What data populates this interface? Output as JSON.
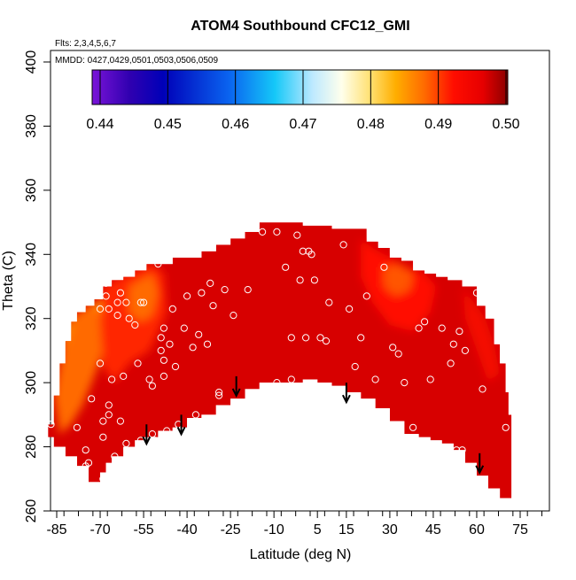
{
  "chart_data": {
    "type": "heatmap",
    "title": "ATOM4 Southbound CFC12_GMI",
    "subtitle_flights": "Flts: 2,3,4,5,6,7",
    "subtitle_dates": "MMDD: 0427,0429,0501,0503,0506,0509",
    "xlabel": "Latitude (deg N)",
    "ylabel": "Theta (C)",
    "xlim": [
      -87,
      87
    ],
    "ylim": [
      260,
      405
    ],
    "x_ticks": [
      -85,
      -70,
      -55,
      -40,
      -25,
      -10,
      5,
      15,
      30,
      45,
      60,
      75
    ],
    "y_ticks": [
      260,
      280,
      300,
      320,
      340,
      360,
      380,
      400
    ],
    "colorbar": {
      "min": 0.44,
      "max": 0.5,
      "ticks": [
        0.44,
        0.45,
        0.46,
        0.47,
        0.48,
        0.49,
        0.5
      ],
      "tick_labels": [
        "0.44",
        "0.45",
        "0.46",
        "0.47",
        "0.48",
        "0.49",
        "0.50"
      ]
    },
    "field_upper_boundary": [
      [
        -88,
        287
      ],
      [
        -86,
        296
      ],
      [
        -84,
        306
      ],
      [
        -82,
        313
      ],
      [
        -80,
        319
      ],
      [
        -78,
        322
      ],
      [
        -75,
        324
      ],
      [
        -72,
        326
      ],
      [
        -69,
        330
      ],
      [
        -66,
        332
      ],
      [
        -62,
        333
      ],
      [
        -58,
        335
      ],
      [
        -54,
        337
      ],
      [
        -50,
        337
      ],
      [
        -45,
        339
      ],
      [
        -40,
        339
      ],
      [
        -35,
        341
      ],
      [
        -30,
        343
      ],
      [
        -25,
        345
      ],
      [
        -20,
        347
      ],
      [
        -15,
        350
      ],
      [
        -10,
        350
      ],
      [
        -5,
        350
      ],
      [
        0,
        349
      ],
      [
        5,
        349
      ],
      [
        10,
        348
      ],
      [
        15,
        348
      ],
      [
        20,
        348
      ],
      [
        22,
        344
      ],
      [
        26,
        342
      ],
      [
        30,
        339
      ],
      [
        34,
        338
      ],
      [
        38,
        335
      ],
      [
        42,
        334
      ],
      [
        46,
        333
      ],
      [
        50,
        332
      ],
      [
        55,
        330
      ],
      [
        60,
        324
      ],
      [
        63,
        320
      ],
      [
        66,
        312
      ],
      [
        68,
        306
      ],
      [
        70,
        297
      ],
      [
        71,
        290
      ],
      [
        72,
        284
      ]
    ],
    "field_lower_boundary": [
      [
        72,
        264
      ],
      [
        68,
        267
      ],
      [
        64,
        271
      ],
      [
        60,
        275
      ],
      [
        56,
        279
      ],
      [
        52,
        281
      ],
      [
        48,
        282
      ],
      [
        44,
        283
      ],
      [
        40,
        284
      ],
      [
        35,
        288
      ],
      [
        30,
        292
      ],
      [
        25,
        295
      ],
      [
        20,
        297
      ],
      [
        15,
        299
      ],
      [
        10,
        300
      ],
      [
        5,
        301
      ],
      [
        0,
        300
      ],
      [
        -5,
        300
      ],
      [
        -10,
        300
      ],
      [
        -15,
        298
      ],
      [
        -20,
        295
      ],
      [
        -25,
        293
      ],
      [
        -30,
        290
      ],
      [
        -35,
        289
      ],
      [
        -40,
        286
      ],
      [
        -45,
        285
      ],
      [
        -50,
        283
      ],
      [
        -55,
        282
      ],
      [
        -58,
        280
      ],
      [
        -62,
        277
      ],
      [
        -66,
        275
      ],
      [
        -68,
        272
      ],
      [
        -70,
        269
      ],
      [
        -74,
        274
      ],
      [
        -78,
        277
      ],
      [
        -82,
        280
      ],
      [
        -86,
        283
      ],
      [
        -88,
        287
      ]
    ],
    "field_base_value": 0.497,
    "value_regions": [
      {
        "name": "orange-high-latitude",
        "value": 0.483,
        "points": [
          [
            -82,
            317
          ],
          [
            -79,
            321
          ],
          [
            -75,
            323
          ],
          [
            -71,
            325
          ],
          [
            -69,
            327
          ],
          [
            -70,
            317
          ],
          [
            -73,
            314
          ],
          [
            -76,
            310
          ],
          [
            -79,
            305
          ],
          [
            -82,
            300
          ],
          [
            -84,
            305
          ]
        ]
      },
      {
        "name": "red-orange-south-edge",
        "value": 0.488,
        "points": [
          [
            -86,
            296
          ],
          [
            -84,
            306
          ],
          [
            -82,
            313
          ],
          [
            -79,
            321
          ],
          [
            -73,
            325
          ],
          [
            -68,
            320
          ],
          [
            -68,
            312
          ],
          [
            -72,
            302
          ],
          [
            -76,
            293
          ],
          [
            -80,
            287
          ],
          [
            -84,
            284
          ]
        ]
      },
      {
        "name": "red-south-midlat",
        "value": 0.491,
        "points": [
          [
            -70,
            329
          ],
          [
            -65,
            332
          ],
          [
            -58,
            335
          ],
          [
            -52,
            337
          ],
          [
            -48,
            334
          ],
          [
            -47,
            322
          ],
          [
            -53,
            310
          ],
          [
            -60,
            306
          ],
          [
            -65,
            300
          ],
          [
            -69,
            305
          ],
          [
            -70,
            318
          ]
        ]
      },
      {
        "name": "red-orange-south-patch",
        "value": 0.488,
        "points": [
          [
            -60,
            330
          ],
          [
            -56,
            332
          ],
          [
            -52,
            334
          ],
          [
            -50,
            328
          ],
          [
            -52,
            321
          ],
          [
            -56,
            319
          ],
          [
            -60,
            322
          ]
        ]
      },
      {
        "name": "red-north-lobe",
        "value": 0.492,
        "points": [
          [
            20,
            345
          ],
          [
            24,
            342
          ],
          [
            30,
            339
          ],
          [
            36,
            336
          ],
          [
            42,
            334
          ],
          [
            46,
            330
          ],
          [
            44,
            322
          ],
          [
            38,
            316
          ],
          [
            30,
            318
          ],
          [
            24,
            325
          ],
          [
            20,
            333
          ]
        ]
      },
      {
        "name": "red-orange-north-patch",
        "value": 0.489,
        "points": [
          [
            28,
            336
          ],
          [
            33,
            337
          ],
          [
            38,
            334
          ],
          [
            37,
            329
          ],
          [
            32,
            327
          ],
          [
            28,
            330
          ]
        ]
      },
      {
        "name": "red-north-edge",
        "value": 0.494,
        "points": [
          [
            55,
            330
          ],
          [
            60,
            324
          ],
          [
            63,
            320
          ],
          [
            66,
            312
          ],
          [
            68,
            303
          ],
          [
            64,
            300
          ],
          [
            60,
            310
          ],
          [
            56,
            320
          ]
        ]
      }
    ],
    "observations": [
      [
        -87,
        287
      ],
      [
        -80,
        321
      ],
      [
        -78,
        286
      ],
      [
        -75,
        274
      ],
      [
        -75,
        279
      ],
      [
        -74,
        275
      ],
      [
        -73,
        295
      ],
      [
        -70,
        306
      ],
      [
        -70,
        323
      ],
      [
        -69,
        270
      ],
      [
        -69,
        283
      ],
      [
        -69,
        288
      ],
      [
        -68,
        327
      ],
      [
        -68,
        331
      ],
      [
        -67,
        293
      ],
      [
        -67,
        290
      ],
      [
        -67,
        323
      ],
      [
        -66,
        301
      ],
      [
        -65,
        277
      ],
      [
        -64,
        325
      ],
      [
        -64,
        321
      ],
      [
        -63,
        288
      ],
      [
        -63,
        328
      ],
      [
        -62,
        302
      ],
      [
        -61,
        281
      ],
      [
        -61,
        325
      ],
      [
        -60,
        320
      ],
      [
        -58,
        318
      ],
      [
        -57,
        306
      ],
      [
        -56,
        282
      ],
      [
        -56,
        325
      ],
      [
        -55,
        325
      ],
      [
        -53,
        301
      ],
      [
        -52,
        299
      ],
      [
        -52,
        284
      ],
      [
        -51,
        282
      ],
      [
        -50,
        337
      ],
      [
        -49,
        314
      ],
      [
        -49,
        310
      ],
      [
        -48,
        307
      ],
      [
        -48,
        317
      ],
      [
        -48,
        302
      ],
      [
        -47,
        285
      ],
      [
        -46,
        312
      ],
      [
        -45,
        323
      ],
      [
        -44,
        305
      ],
      [
        -43,
        287
      ],
      [
        -41,
        317
      ],
      [
        -40,
        327
      ],
      [
        -38,
        311
      ],
      [
        -37,
        290
      ],
      [
        -36,
        315
      ],
      [
        -35,
        328
      ],
      [
        -33,
        312
      ],
      [
        -32,
        331
      ],
      [
        -31,
        324
      ],
      [
        -29,
        297
      ],
      [
        -29,
        296
      ],
      [
        -27,
        329
      ],
      [
        -24,
        321
      ],
      [
        -19,
        329
      ],
      [
        -14,
        347
      ],
      [
        -9,
        300
      ],
      [
        -9,
        347
      ],
      [
        -6,
        336
      ],
      [
        -4,
        301
      ],
      [
        -4,
        314
      ],
      [
        -2,
        346
      ],
      [
        -1,
        332
      ],
      [
        0,
        341
      ],
      [
        1,
        314
      ],
      [
        2,
        341
      ],
      [
        3,
        340
      ],
      [
        3,
        299
      ],
      [
        4,
        332
      ],
      [
        6,
        314
      ],
      [
        8,
        313
      ],
      [
        9,
        325
      ],
      [
        14,
        343
      ],
      [
        16,
        323
      ],
      [
        18,
        305
      ],
      [
        20,
        314
      ],
      [
        22,
        327
      ],
      [
        25,
        301
      ],
      [
        28,
        336
      ],
      [
        31,
        311
      ],
      [
        33,
        309
      ],
      [
        35,
        300
      ],
      [
        38,
        286
      ],
      [
        40,
        317
      ],
      [
        42,
        319
      ],
      [
        44,
        301
      ],
      [
        48,
        317
      ],
      [
        51,
        306
      ],
      [
        52,
        312
      ],
      [
        53,
        279
      ],
      [
        54,
        316
      ],
      [
        55,
        279
      ],
      [
        56,
        310
      ],
      [
        60,
        328
      ],
      [
        62,
        298
      ],
      [
        70,
        286
      ]
    ],
    "arrows": [
      [
        -54,
        287
      ],
      [
        -42,
        290
      ],
      [
        -23,
        302
      ],
      [
        15,
        300
      ],
      [
        61,
        278
      ]
    ]
  }
}
